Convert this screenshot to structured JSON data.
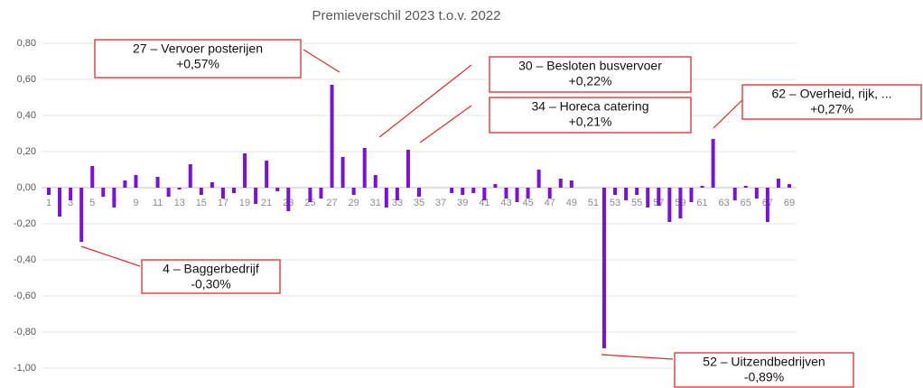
{
  "chart_data": {
    "type": "bar",
    "title": "Premieverschil 2023 t.o.v. 2022",
    "categories": [
      "1",
      null,
      "3",
      null,
      "5",
      null,
      "7",
      null,
      "9",
      null,
      "11",
      null,
      "13",
      null,
      "15",
      null,
      "17",
      null,
      "19",
      null,
      "21",
      null,
      "23",
      null,
      "25",
      null,
      "27",
      null,
      "29",
      null,
      "31",
      null,
      "33",
      null,
      "35",
      null,
      "37",
      null,
      "39",
      null,
      "41",
      null,
      "43",
      null,
      "45",
      null,
      "47",
      null,
      "49",
      null,
      "51",
      null,
      "53",
      null,
      "55",
      null,
      "57",
      null,
      "59",
      null,
      "61",
      null,
      "63",
      null,
      "65",
      null,
      "67",
      null,
      "69"
    ],
    "values": [
      -0.04,
      -0.16,
      -0.07,
      -0.3,
      0.12,
      -0.05,
      -0.11,
      0.04,
      0.07,
      0,
      0.06,
      -0.05,
      -0.01,
      0.13,
      -0.04,
      0.03,
      -0.06,
      -0.03,
      0.19,
      -0.09,
      0.15,
      -0.02,
      -0.13,
      0,
      -0.08,
      -0.06,
      0.57,
      0.17,
      -0.04,
      0.22,
      0.07,
      -0.11,
      -0.07,
      0.21,
      -0.05,
      0,
      0,
      -0.03,
      -0.04,
      -0.03,
      -0.07,
      0.02,
      -0.06,
      -0.08,
      -0.06,
      0.1,
      -0.06,
      0.05,
      0.04,
      0,
      0,
      -0.89,
      -0.04,
      -0.07,
      -0.04,
      -0.11,
      -0.1,
      -0.19,
      -0.17,
      -0.08,
      0.01,
      0.27,
      0,
      -0.07,
      0.01,
      -0.06,
      -0.19,
      0.05,
      0.02
    ],
    "color": "#7b10d8",
    "ylim": [
      -1.0,
      0.8
    ],
    "yticks": [
      {
        "value": 0.8,
        "label": "0,80"
      },
      {
        "value": 0.6,
        "label": "0,60"
      },
      {
        "value": 0.4,
        "label": "0,40"
      },
      {
        "value": 0.2,
        "label": "0,20"
      },
      {
        "value": 0,
        "label": "0,00"
      },
      {
        "value": -0.2,
        "label": "-0,20"
      },
      {
        "value": -0.4,
        "label": "-0,40"
      },
      {
        "value": -0.6,
        "label": "-0,60"
      },
      {
        "value": -0.8,
        "label": "-0,80"
      },
      {
        "value": -1.0,
        "label": "-1,00"
      }
    ],
    "grid": true,
    "annotations": [
      {
        "lines": [
          "27 – Vervoer posterijen",
          "+0,57%"
        ]
      },
      {
        "lines": [
          "30 – Besloten busvervoer",
          "+0,22%"
        ]
      },
      {
        "lines": [
          "34 – Horeca catering",
          "+0,21%"
        ]
      },
      {
        "lines": [
          "62 – Overheid, rijk, ...",
          "+0,27%"
        ]
      },
      {
        "lines": [
          "4 – Baggerbedrijf",
          "-0,30%"
        ]
      },
      {
        "lines": [
          "52 – Uitzendbedrijven",
          "-0,89%"
        ]
      }
    ]
  }
}
